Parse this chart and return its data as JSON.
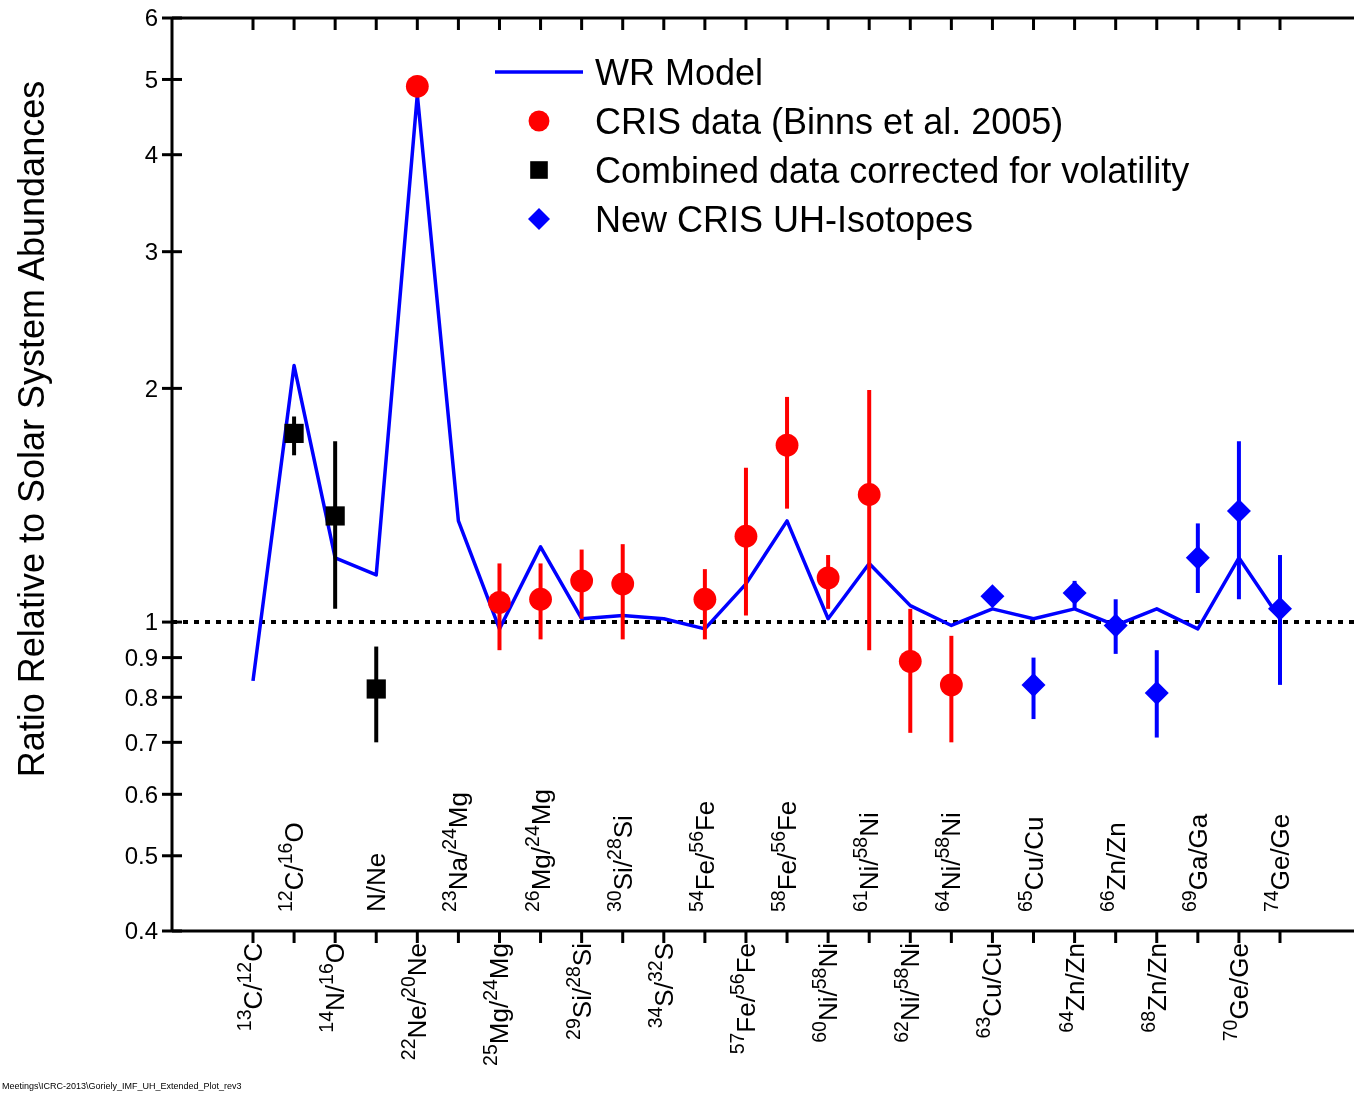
{
  "chart_data": {
    "type": "scatter",
    "ylabel": "Ratio Relative to Solar System Abundances",
    "log": "y",
    "ylim": [
      0.4,
      6
    ],
    "yticks": [
      0.4,
      0.5,
      0.6,
      0.7,
      0.8,
      0.9,
      1,
      2,
      3,
      4,
      5,
      6
    ],
    "grid": false,
    "legend": "top right",
    "categories": [
      "$^{13}$C/$^{12}$C",
      "$^{12}$C/$^{16}$O",
      "$^{14}$N/$^{16}$O",
      "N/Ne",
      "$^{22}$Ne/$^{20}$Ne",
      "$^{23}$Na/$^{24}$Mg",
      "$^{25}$Mg/$^{24}$Mg",
      "$^{26}$Mg/$^{24}$Mg",
      "$^{29}$Si/$^{28}$Si",
      "$^{30}$Si/$^{28}$Si",
      "$^{34}$S/$^{32}$S",
      "$^{54}$Fe/$^{56}$Fe",
      "$^{57}$Fe/$^{56}$Fe",
      "$^{58}$Fe/$^{56}$Fe",
      "$^{60}$Ni/$^{58}$Ni",
      "$^{61}$Ni/$^{58}$Ni",
      "$^{62}$Ni/$^{58}$Ni",
      "$^{64}$Ni/$^{58}$Ni",
      "$^{63}$Cu/Cu",
      "$^{65}$Cu/Cu",
      "$^{64}$Zn/Zn",
      "$^{66}$Zn/Zn",
      "$^{68}$Zn/Zn",
      "$^{69}$Ga/Ga",
      "$^{70}$Ge/Ge",
      "$^{74}$Ge/Ge"
    ],
    "series": [
      {
        "name": "WR Model",
        "type": "line",
        "color": "#0000ff",
        "marker": "none",
        "line_style": "solid",
        "values": [
          0.84,
          2.14,
          1.21,
          1.15,
          4.78,
          1.35,
          0.98,
          1.25,
          1.01,
          1.02,
          1.01,
          0.98,
          1.12,
          1.35,
          1.01,
          1.19,
          1.05,
          0.99,
          1.04,
          1.01,
          1.04,
          0.99,
          1.04,
          0.98,
          1.21,
          1.01
        ]
      },
      {
        "name": "CRIS data (Binns et al. 2005)",
        "color": "#ff0000",
        "marker": "circle",
        "values": [
          null,
          null,
          null,
          null,
          4.9,
          null,
          1.06,
          1.07,
          1.13,
          1.12,
          null,
          1.07,
          1.29,
          1.69,
          1.14,
          1.46,
          0.89,
          0.83,
          null,
          null,
          null,
          null,
          null,
          null,
          null,
          null
        ],
        "errors": [
          null,
          null,
          null,
          null,
          null,
          null,
          [
            0.92,
            1.19
          ],
          [
            0.95,
            1.19
          ],
          [
            1.01,
            1.24
          ],
          [
            0.95,
            1.26
          ],
          null,
          [
            0.95,
            1.17
          ],
          [
            1.02,
            1.58
          ],
          [
            1.4,
            1.95
          ],
          [
            1.04,
            1.22
          ],
          [
            0.92,
            1.99
          ],
          [
            0.72,
            1.04
          ],
          [
            0.7,
            0.96
          ],
          null,
          null,
          null,
          null,
          null,
          null,
          null,
          null
        ]
      },
      {
        "name": "Combined data corrected for volatility",
        "color": "#000000",
        "marker": "square",
        "values": [
          null,
          1.75,
          1.37,
          0.82,
          null,
          null,
          null,
          null,
          null,
          null,
          null,
          null,
          null,
          null,
          null,
          null,
          null,
          null,
          null,
          null,
          null,
          null,
          null,
          null,
          null,
          null
        ],
        "errors": [
          null,
          [
            1.64,
            1.84
          ],
          [
            1.04,
            1.71
          ],
          [
            0.7,
            0.93
          ],
          null,
          null,
          null,
          null,
          null,
          null,
          null,
          null,
          null,
          null,
          null,
          null,
          null,
          null,
          null,
          null,
          null,
          null,
          null,
          null,
          null,
          null
        ]
      },
      {
        "name": "New CRIS UH-Isotopes",
        "color": "#0000ff",
        "marker": "diamond",
        "values": [
          null,
          null,
          null,
          null,
          null,
          null,
          null,
          null,
          null,
          null,
          null,
          null,
          null,
          null,
          null,
          null,
          null,
          null,
          1.08,
          0.83,
          1.09,
          0.99,
          0.81,
          1.21,
          1.39,
          1.04
        ],
        "errors": [
          null,
          null,
          null,
          null,
          null,
          null,
          null,
          null,
          null,
          null,
          null,
          null,
          null,
          null,
          null,
          null,
          null,
          null,
          null,
          [
            0.75,
            0.9
          ],
          [
            1.04,
            1.13
          ],
          [
            0.91,
            1.07
          ],
          [
            0.71,
            0.92
          ],
          [
            1.09,
            1.34
          ],
          [
            1.07,
            1.71
          ],
          [
            0.83,
            1.22
          ]
        ]
      }
    ],
    "ref_lines": [
      {
        "axis": "y",
        "value": 1,
        "color": "#000000",
        "line_style": "dotted"
      }
    ],
    "annotations": [
      "Meetings\\ICRC-2013\\Goriely_IMF_UH_Extended_Plot_rev3"
    ]
  }
}
